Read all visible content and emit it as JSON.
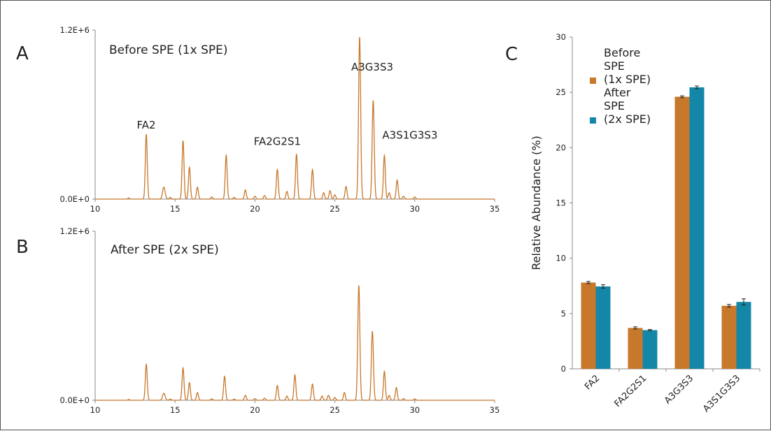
{
  "panels": {
    "a": {
      "letter": "A",
      "title": "Before SPE (1x SPE)"
    },
    "b": {
      "letter": "B",
      "title": "After SPE (2x SPE)"
    },
    "c": {
      "letter": "C"
    }
  },
  "chart_data": [
    {
      "id": "chromatogram-a",
      "type": "line",
      "title": "Before SPE (1x SPE)",
      "xlim": [
        10,
        35
      ],
      "x_ticks": [
        "10",
        "15",
        "20",
        "25",
        "30",
        "35"
      ],
      "ylim": [
        0,
        1200000
      ],
      "y_ticks": [
        "0.0E+0",
        "1.2E+6"
      ],
      "line_color": "#C8782A",
      "peaks": [
        {
          "x": 12.1,
          "y": 8000,
          "w": 0.05
        },
        {
          "x": 13.2,
          "y": 460000,
          "w": 0.06
        },
        {
          "x": 14.3,
          "y": 85000,
          "w": 0.08
        },
        {
          "x": 14.7,
          "y": 12000,
          "w": 0.06
        },
        {
          "x": 15.5,
          "y": 415000,
          "w": 0.06
        },
        {
          "x": 15.9,
          "y": 225000,
          "w": 0.06
        },
        {
          "x": 16.4,
          "y": 85000,
          "w": 0.06
        },
        {
          "x": 17.3,
          "y": 15000,
          "w": 0.06
        },
        {
          "x": 18.2,
          "y": 310000,
          "w": 0.06
        },
        {
          "x": 18.7,
          "y": 12000,
          "w": 0.06
        },
        {
          "x": 19.4,
          "y": 65000,
          "w": 0.06
        },
        {
          "x": 20.0,
          "y": 20000,
          "w": 0.06
        },
        {
          "x": 20.6,
          "y": 25000,
          "w": 0.06
        },
        {
          "x": 21.4,
          "y": 210000,
          "w": 0.06
        },
        {
          "x": 22.0,
          "y": 55000,
          "w": 0.06
        },
        {
          "x": 22.6,
          "y": 320000,
          "w": 0.06
        },
        {
          "x": 23.6,
          "y": 210000,
          "w": 0.06
        },
        {
          "x": 24.3,
          "y": 45000,
          "w": 0.06
        },
        {
          "x": 24.7,
          "y": 60000,
          "w": 0.06
        },
        {
          "x": 25.0,
          "y": 30000,
          "w": 0.06
        },
        {
          "x": 25.7,
          "y": 90000,
          "w": 0.06
        },
        {
          "x": 26.55,
          "y": 1150000,
          "w": 0.065
        },
        {
          "x": 27.4,
          "y": 700000,
          "w": 0.065
        },
        {
          "x": 28.1,
          "y": 310000,
          "w": 0.06
        },
        {
          "x": 28.4,
          "y": 45000,
          "w": 0.06
        },
        {
          "x": 28.9,
          "y": 135000,
          "w": 0.06
        },
        {
          "x": 29.3,
          "y": 20000,
          "w": 0.06
        },
        {
          "x": 30.0,
          "y": 15000,
          "w": 0.06
        }
      ],
      "annotations": [
        {
          "text": "FA2",
          "x": 13.2,
          "y": 460000
        },
        {
          "text": "FA2G2S1",
          "x": 21.4,
          "y": 210000
        },
        {
          "text": "A3G3S3",
          "x": 26.55,
          "y": 1150000
        },
        {
          "text": "A3S1G3S3",
          "x": 28.1,
          "y": 310000
        }
      ]
    },
    {
      "id": "chromatogram-b",
      "type": "line",
      "title": "After SPE (2x SPE)",
      "xlim": [
        10,
        35
      ],
      "x_ticks": [
        "10",
        "15",
        "20",
        "25",
        "30",
        "35"
      ],
      "ylim": [
        0,
        1200000
      ],
      "y_ticks": [
        "0.0E+0",
        "1.2E+6"
      ],
      "line_color": "#C8782A",
      "peaks": [
        {
          "x": 12.1,
          "y": 6000,
          "w": 0.05
        },
        {
          "x": 13.2,
          "y": 255000,
          "w": 0.06
        },
        {
          "x": 14.3,
          "y": 50000,
          "w": 0.08
        },
        {
          "x": 14.7,
          "y": 8000,
          "w": 0.06
        },
        {
          "x": 15.5,
          "y": 230000,
          "w": 0.06
        },
        {
          "x": 15.9,
          "y": 125000,
          "w": 0.06
        },
        {
          "x": 16.4,
          "y": 55000,
          "w": 0.06
        },
        {
          "x": 17.3,
          "y": 10000,
          "w": 0.06
        },
        {
          "x": 18.1,
          "y": 170000,
          "w": 0.06
        },
        {
          "x": 18.7,
          "y": 8000,
          "w": 0.06
        },
        {
          "x": 19.4,
          "y": 35000,
          "w": 0.06
        },
        {
          "x": 20.0,
          "y": 12000,
          "w": 0.06
        },
        {
          "x": 20.6,
          "y": 15000,
          "w": 0.06
        },
        {
          "x": 21.4,
          "y": 105000,
          "w": 0.06
        },
        {
          "x": 22.0,
          "y": 30000,
          "w": 0.06
        },
        {
          "x": 22.5,
          "y": 180000,
          "w": 0.06
        },
        {
          "x": 23.6,
          "y": 115000,
          "w": 0.06
        },
        {
          "x": 24.2,
          "y": 30000,
          "w": 0.06
        },
        {
          "x": 24.6,
          "y": 35000,
          "w": 0.06
        },
        {
          "x": 25.0,
          "y": 20000,
          "w": 0.06
        },
        {
          "x": 25.6,
          "y": 55000,
          "w": 0.06
        },
        {
          "x": 26.5,
          "y": 815000,
          "w": 0.065
        },
        {
          "x": 27.35,
          "y": 490000,
          "w": 0.065
        },
        {
          "x": 28.1,
          "y": 205000,
          "w": 0.06
        },
        {
          "x": 28.4,
          "y": 35000,
          "w": 0.06
        },
        {
          "x": 28.85,
          "y": 90000,
          "w": 0.06
        },
        {
          "x": 29.3,
          "y": 12000,
          "w": 0.06
        },
        {
          "x": 30.0,
          "y": 10000,
          "w": 0.06
        }
      ]
    },
    {
      "id": "bar-c",
      "type": "bar",
      "categories": [
        "FA2",
        "FA2G2S1",
        "A3G3S3",
        "A3S1G3S3"
      ],
      "ylabel": "Relative Abundance (%)",
      "ylim": [
        0,
        30
      ],
      "y_ticks": [
        "0",
        "5",
        "10",
        "15",
        "20",
        "25",
        "30"
      ],
      "legend_placement": "top-left",
      "series": [
        {
          "name": "Before SPE (1x SPE)",
          "legend_lines": [
            "Before",
            "SPE",
            "(1x SPE)"
          ],
          "color": "#C8782A",
          "values": [
            7.8,
            3.7,
            24.6,
            5.7
          ],
          "errors": [
            0.1,
            0.1,
            0.08,
            0.12
          ]
        },
        {
          "name": "After SPE (2x SPE)",
          "legend_lines": [
            "After",
            "SPE",
            "(2x SPE)"
          ],
          "color": "#1487A8",
          "values": [
            7.45,
            3.5,
            25.45,
            6.05
          ],
          "errors": [
            0.15,
            0.05,
            0.12,
            0.28
          ]
        }
      ]
    }
  ]
}
